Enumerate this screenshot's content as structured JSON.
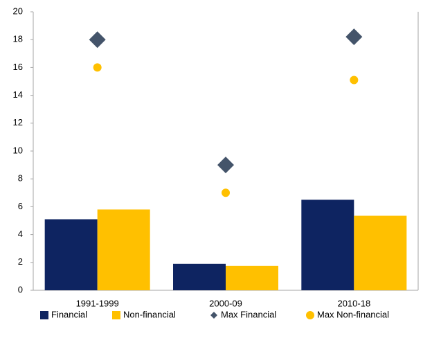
{
  "chart_data": {
    "type": "bar",
    "categories": [
      "1991-1999",
      "2000-09",
      "2010-18"
    ],
    "series": [
      {
        "name": "Financial",
        "color": "#0e2461",
        "mark": "bar",
        "values": [
          5.1,
          1.9,
          6.5
        ]
      },
      {
        "name": "Non-financial",
        "color": "#ffc000",
        "mark": "bar",
        "values": [
          5.8,
          1.75,
          5.35
        ]
      },
      {
        "name": "Max Financial",
        "color": "#44546a",
        "mark": "diamond",
        "values": [
          18,
          9,
          18.2
        ]
      },
      {
        "name": "Max Non-financial",
        "color": "#ffc000",
        "mark": "circle",
        "values": [
          16,
          7,
          15.1
        ]
      }
    ],
    "ylim": [
      0,
      20
    ],
    "yticks": [
      0,
      2,
      4,
      6,
      8,
      10,
      12,
      14,
      16,
      18,
      20
    ],
    "grid": false,
    "legend": "bottom"
  }
}
